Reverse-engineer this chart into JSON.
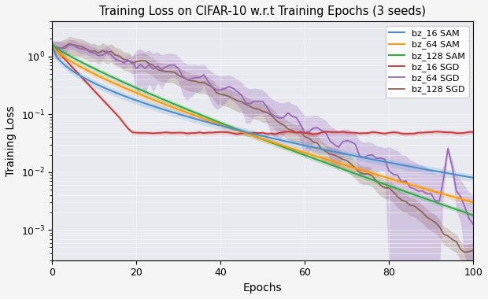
{
  "title": "Training Loss on CIFAR-10 w.r.t Training Epochs (3 seeds)",
  "xlabel": "Epochs",
  "ylabel": "Training Loss",
  "plot_bg": "#e8eaf0",
  "fig_bg": "#f5f5f5",
  "colors": {
    "bz_16_SAM": "#4C8ECD",
    "bz_64_SAM": "#FF9900",
    "bz_128_SAM": "#33AA44",
    "bz_16_SGD": "#CC3333",
    "bz_64_SGD": "#9966BB",
    "bz_128_SGD": "#8B6655"
  },
  "xlim": [
    0,
    100
  ],
  "ylim": [
    0.0003,
    4.0
  ]
}
